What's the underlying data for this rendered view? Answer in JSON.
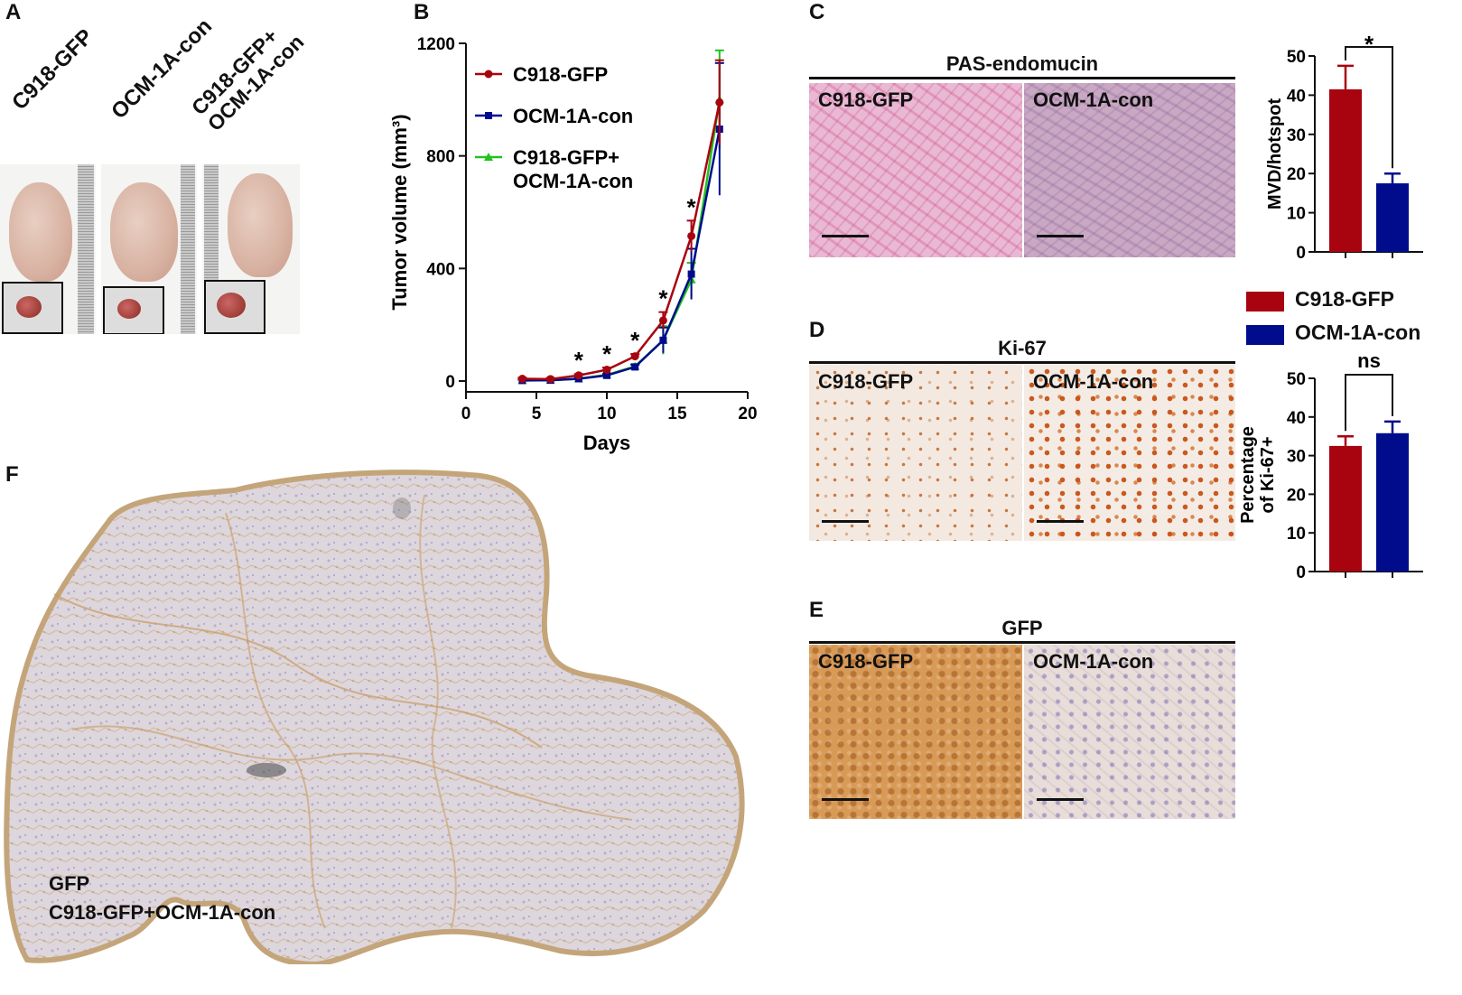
{
  "panels": {
    "a": "A",
    "b": "B",
    "c": "C",
    "d": "D",
    "e": "E",
    "f": "F"
  },
  "panel_a": {
    "groups": [
      "C918-GFP",
      "OCM-1A-con",
      "C918-GFP+\nOCM-1A-con"
    ]
  },
  "panel_c": {
    "stain_title": "PAS-endomucin",
    "images": [
      "C918-GFP",
      "OCM-1A-con"
    ]
  },
  "panel_d": {
    "stain_title": "Ki-67",
    "images": [
      "C918-GFP",
      "OCM-1A-con"
    ]
  },
  "panel_e": {
    "stain_title": "GFP",
    "images": [
      "C918-GFP",
      "OCM-1A-con"
    ]
  },
  "panel_f": {
    "label_line1": "GFP",
    "label_line2": "C918-GFP+OCM-1A-con"
  },
  "bar_legend": [
    "C918-GFP",
    "OCM-1A-con"
  ],
  "colors": {
    "c918": "#a8040f",
    "ocm": "#000c8c",
    "mixed": "#22c21e"
  },
  "chart_data": [
    {
      "type": "line",
      "panel": "B",
      "xlabel": "Days",
      "ylabel": "Tumor volume (mm³)",
      "xlim": [
        0,
        20
      ],
      "ylim": [
        0,
        1200
      ],
      "xticks": [
        0,
        5,
        10,
        15,
        20
      ],
      "yticks": [
        0,
        400,
        800,
        1200
      ],
      "x": [
        4,
        6,
        8,
        10,
        12,
        14,
        16,
        18
      ],
      "series": [
        {
          "name": "C918-GFP",
          "values": [
            8,
            7,
            20,
            40,
            88,
            215,
            515,
            990
          ],
          "err": [
            4,
            3,
            5,
            8,
            8,
            30,
            55,
            150
          ],
          "marker": "circle"
        },
        {
          "name": "OCM-1A-con",
          "values": [
            2,
            3,
            8,
            20,
            50,
            145,
            380,
            895
          ],
          "err": [
            3,
            3,
            4,
            5,
            8,
            45,
            90,
            235
          ],
          "marker": "square"
        },
        {
          "name": "C918-GFP+\nOCM-1A-con",
          "values": [
            2,
            3,
            8,
            22,
            52,
            145,
            360,
            1000
          ],
          "err": [
            3,
            3,
            4,
            5,
            8,
            50,
            60,
            175
          ],
          "marker": "triangle"
        }
      ],
      "significance": [
        {
          "x": 8,
          "label": "*"
        },
        {
          "x": 10,
          "label": "*"
        },
        {
          "x": 12,
          "label": "*"
        },
        {
          "x": 14,
          "label": "*"
        },
        {
          "x": 16,
          "label": "*"
        }
      ],
      "legend": "top-left"
    },
    {
      "type": "bar",
      "panel": "C",
      "categories": [
        "C918-GFP",
        "OCM-1A-con"
      ],
      "values": [
        41.5,
        17.5
      ],
      "err": [
        6,
        2.5
      ],
      "ylabel": "MVD/hotspot",
      "ylim": [
        0,
        50
      ],
      "yticks": [
        0,
        10,
        20,
        30,
        40,
        50
      ],
      "significance": "*"
    },
    {
      "type": "bar",
      "panel": "D",
      "categories": [
        "C918-GFP",
        "OCM-1A-con"
      ],
      "values": [
        32.5,
        35.8
      ],
      "err": [
        2.5,
        3
      ],
      "ylabel": "Percentage\nof Ki-67+",
      "ylim": [
        0,
        50
      ],
      "yticks": [
        0,
        10,
        20,
        30,
        40,
        50
      ],
      "significance": "ns"
    }
  ]
}
